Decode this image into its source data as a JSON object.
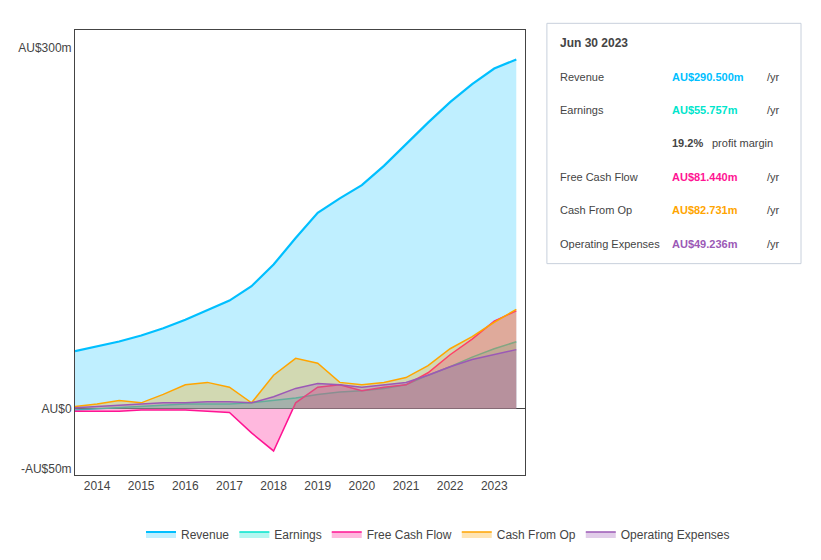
{
  "chart_data": {
    "type": "area",
    "x": [
      2013.5,
      2014.0,
      2014.5,
      2015.0,
      2015.5,
      2016.0,
      2016.5,
      2017.0,
      2017.5,
      2018.0,
      2018.5,
      2019.0,
      2019.5,
      2020.0,
      2020.5,
      2021.0,
      2021.5,
      2022.0,
      2022.5,
      2023.0,
      2023.5
    ],
    "xlim": [
      2013.5,
      2023.7
    ],
    "xticks": [
      2014,
      2015,
      2016,
      2017,
      2018,
      2019,
      2020,
      2021,
      2022,
      2023
    ],
    "ylim": [
      -55,
      315
    ],
    "yticks": [
      {
        "value": -50,
        "label": "-AU$50m"
      },
      {
        "value": 0,
        "label": "AU$0"
      },
      {
        "value": 300,
        "label": "AU$300m"
      }
    ],
    "grid": false,
    "legend": "bottom",
    "series": [
      {
        "name": "Revenue",
        "color": "#00bfff",
        "values": [
          48,
          52,
          56,
          61,
          67,
          74,
          82,
          90,
          102,
          120,
          142,
          163,
          175,
          186,
          202,
          220,
          238,
          255,
          270,
          283,
          290.5
        ]
      },
      {
        "name": "Earnings",
        "color": "#00e5cc",
        "values": [
          -1,
          0,
          1,
          2,
          3,
          4,
          4,
          4,
          5,
          7,
          9,
          12,
          14,
          15,
          17,
          20,
          28,
          35,
          43,
          50,
          55.757
        ]
      },
      {
        "name": "Free Cash Flow",
        "color": "#ff1493",
        "values": [
          -2,
          -2,
          -2,
          -1,
          -1,
          -1,
          -2,
          -3,
          -20,
          -35,
          5,
          18,
          20,
          15,
          18,
          20,
          30,
          45,
          58,
          73,
          81.44
        ]
      },
      {
        "name": "Cash From Op",
        "color": "#ffa500",
        "values": [
          2,
          4,
          7,
          5,
          12,
          20,
          22,
          18,
          5,
          28,
          42,
          38,
          22,
          20,
          22,
          26,
          36,
          50,
          60,
          72,
          82.731
        ]
      },
      {
        "name": "Operating Expenses",
        "color": "#9b59b6",
        "values": [
          1,
          2,
          3,
          4,
          5,
          5,
          6,
          6,
          5,
          10,
          17,
          21,
          20,
          18,
          20,
          22,
          28,
          35,
          41,
          45,
          49.236
        ]
      }
    ],
    "annotations": [
      [
        {
          "text": "Jun 30 2023"
        }
      ],
      [
        {
          "text": "Revenue"
        },
        {
          "text": "AU$290.500m",
          "color": "#00bfff"
        },
        {
          "text": "/yr"
        }
      ],
      [
        {
          "text": "Earnings"
        },
        {
          "text": "AU$55.757m",
          "color": "#00e5cc"
        },
        {
          "text": "/yr"
        }
      ],
      [
        {
          "text": "19.2%"
        },
        {
          "text": "profit margin"
        }
      ],
      [
        {
          "text": "Free Cash Flow"
        },
        {
          "text": "AU$81.440m",
          "color": "#ff1493"
        },
        {
          "text": "/yr"
        }
      ],
      [
        {
          "text": "Cash From Op"
        },
        {
          "text": "AU$82.731m",
          "color": "#ffa500"
        },
        {
          "text": "/yr"
        }
      ],
      [
        {
          "text": "Operating Expenses"
        },
        {
          "text": "AU$49.236m",
          "color": "#9b59b6"
        },
        {
          "text": "/yr"
        }
      ]
    ]
  }
}
